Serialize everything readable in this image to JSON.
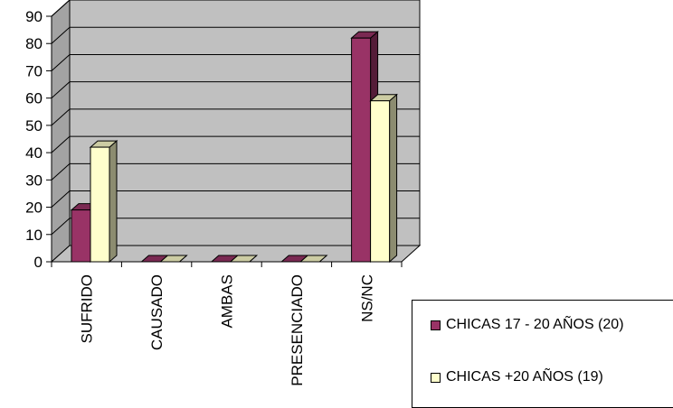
{
  "chart_data": {
    "type": "bar",
    "categories": [
      "SUFRIDO",
      "CAUSADO",
      "AMBAS",
      "PRESENCIADO",
      "NS/NC"
    ],
    "series": [
      {
        "name": "CHICAS 17 - 20 AÑOS (20)",
        "values": [
          19,
          0,
          0,
          0,
          82
        ],
        "color": "#993366"
      },
      {
        "name": "CHICAS +20 AÑOS (19)",
        "values": [
          42,
          0,
          0,
          0,
          59
        ],
        "color": "#ffffcc"
      }
    ],
    "ylim": [
      0,
      90
    ],
    "yticks": [
      0,
      10,
      20,
      30,
      40,
      50,
      60,
      70,
      80,
      90
    ],
    "grid": true,
    "legend_position": "bottom-right",
    "wall_color": "#c0c0c0"
  }
}
